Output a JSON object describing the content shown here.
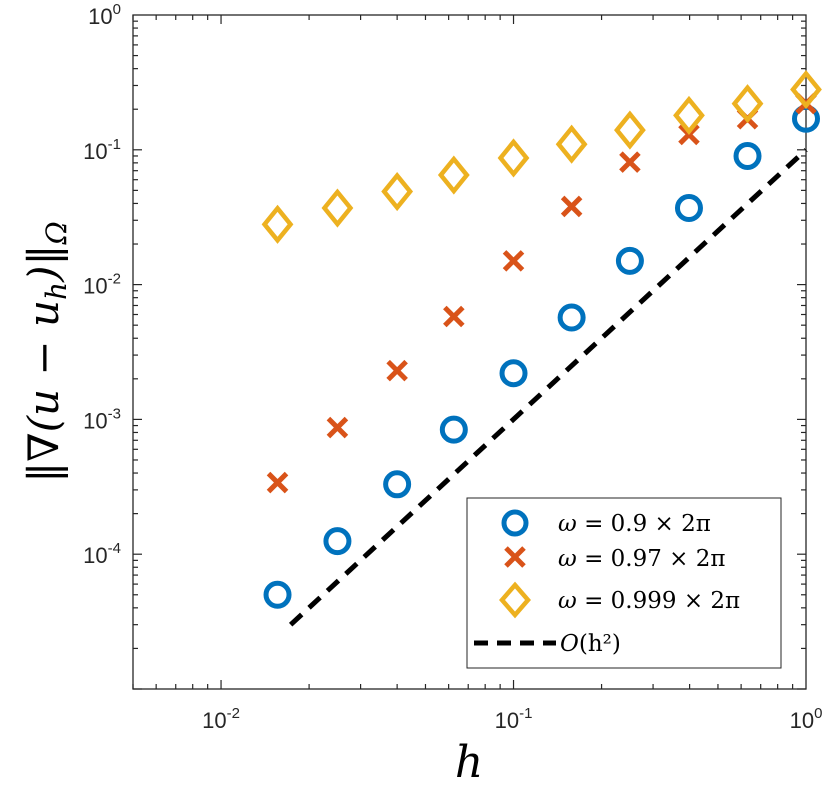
{
  "chart_data": {
    "type": "scatter",
    "xscale": "log",
    "yscale": "log",
    "xlim": [
      0.005,
      1
    ],
    "ylim": [
      1e-05,
      1
    ],
    "xlabel": "h",
    "ylabel": "‖∇(u − u",
    "ylabel_sub": "h",
    "ylabel_tail": ")‖",
    "ylabel_norm_sub": "Ω",
    "xticks": [
      {
        "value": 0.01,
        "base": "10",
        "exp": "-2"
      },
      {
        "value": 0.1,
        "base": "10",
        "exp": "-1"
      },
      {
        "value": 1,
        "base": "10",
        "exp": "0"
      }
    ],
    "yticks": [
      {
        "value": 0.0001,
        "base": "10",
        "exp": "-4"
      },
      {
        "value": 0.001,
        "base": "10",
        "exp": "-3"
      },
      {
        "value": 0.01,
        "base": "10",
        "exp": "-2"
      },
      {
        "value": 0.1,
        "base": "10",
        "exp": "-1"
      },
      {
        "value": 1,
        "base": "10",
        "exp": "0"
      }
    ],
    "series": [
      {
        "name": "ω = 0.9 × 2π",
        "marker": "circle",
        "color": "#0072BD",
        "x": [
          0.0156,
          0.025,
          0.04,
          0.0625,
          0.1,
          0.158,
          0.25,
          0.398,
          0.631,
          1.0
        ],
        "y": [
          5e-05,
          0.000125,
          0.00033,
          0.00084,
          0.0022,
          0.0057,
          0.015,
          0.037,
          0.09,
          0.17
        ]
      },
      {
        "name": "ω = 0.97 × 2π",
        "marker": "x",
        "color": "#D95319",
        "x": [
          0.0156,
          0.025,
          0.04,
          0.0625,
          0.1,
          0.158,
          0.25,
          0.398,
          0.631,
          1.0
        ],
        "y": [
          0.00034,
          0.00087,
          0.0023,
          0.0058,
          0.015,
          0.038,
          0.081,
          0.13,
          0.17,
          0.22
        ]
      },
      {
        "name": "ω = 0.999 × 2π",
        "marker": "diamond",
        "color": "#EDB120",
        "x": [
          0.0156,
          0.025,
          0.04,
          0.0625,
          0.1,
          0.158,
          0.25,
          0.398,
          0.631,
          1.0
        ],
        "y": [
          0.028,
          0.037,
          0.049,
          0.065,
          0.087,
          0.11,
          0.14,
          0.18,
          0.22,
          0.28
        ]
      },
      {
        "name": "O(h²)",
        "marker": "dashed-line",
        "color": "#000000",
        "x": [
          0.0173,
          1.0
        ],
        "y": [
          3e-05,
          0.1
        ]
      }
    ],
    "legend": {
      "position": "bottom-right",
      "entries": [
        {
          "symbol": "ω",
          "eq": " = 0.9 × 2π"
        },
        {
          "symbol": "ω",
          "eq": " = 0.97 × 2π"
        },
        {
          "symbol": "ω",
          "eq": " = 0.999 × 2π"
        },
        {
          "symbol": "O",
          "eq": "(h²)"
        }
      ]
    }
  }
}
